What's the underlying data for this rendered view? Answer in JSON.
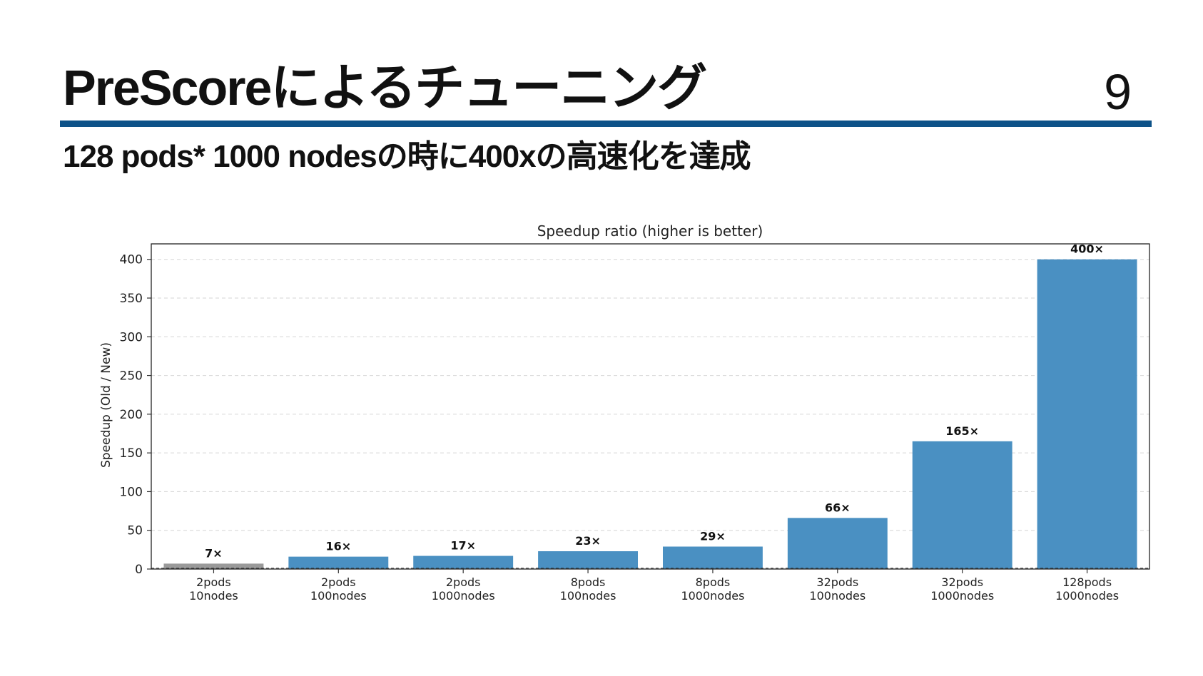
{
  "slide": {
    "title": "PreScoreによるチューニング",
    "page_number": "9",
    "subtitle": "128 pods* 1000 nodesの時に400xの高速化を達成",
    "accent_color": "#0d5288"
  },
  "chart_data": {
    "type": "bar",
    "title": "Speedup ratio  (higher is better)",
    "xlabel": "",
    "ylabel": "Speedup (Old / New)",
    "ylim": [
      0,
      420
    ],
    "yticks": [
      0,
      50,
      100,
      150,
      200,
      250,
      300,
      350,
      400
    ],
    "grid": "horizontal-dashed",
    "categories": [
      [
        "2pods",
        "10nodes"
      ],
      [
        "2pods",
        "100nodes"
      ],
      [
        "2pods",
        "1000nodes"
      ],
      [
        "8pods",
        "100nodes"
      ],
      [
        "8pods",
        "1000nodes"
      ],
      [
        "32pods",
        "100nodes"
      ],
      [
        "32pods",
        "1000nodes"
      ],
      [
        "128pods",
        "1000nodes"
      ]
    ],
    "values": [
      7,
      16,
      17,
      23,
      29,
      66,
      165,
      400
    ],
    "data_labels": [
      "7×",
      "16×",
      "17×",
      "23×",
      "29×",
      "66×",
      "165×",
      "400×"
    ],
    "bar_colors": [
      "#9a9a9a",
      "#4a90c2",
      "#4a90c2",
      "#4a90c2",
      "#4a90c2",
      "#4a90c2",
      "#4a90c2",
      "#4a90c2"
    ],
    "baseline": 1
  }
}
